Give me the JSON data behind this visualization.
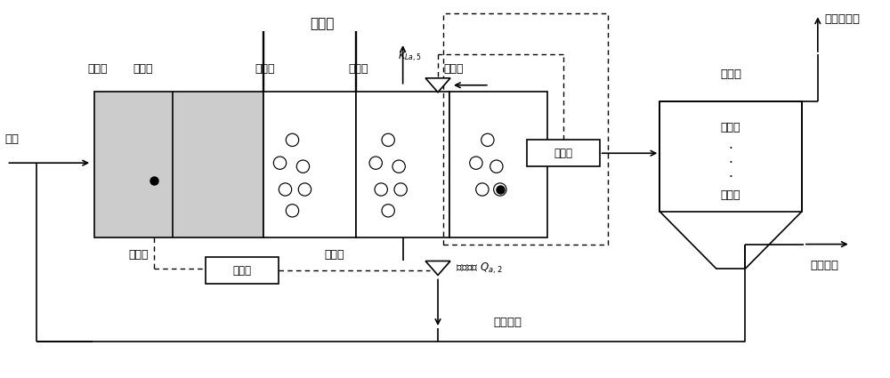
{
  "bg_color": "#ffffff",
  "line_color": "#000000",
  "gray_fill": "#cccccc",
  "labels": {
    "sewage": "污水",
    "bio_pool": "生化池",
    "zone1": "分区一",
    "zone2": "分区二",
    "zone3": "分区三",
    "zone4": "分区四",
    "zone5": "分区五",
    "anoxic": "缺氧区",
    "aerobic": "好氧区",
    "controller1": "控制器",
    "controller2": "控制器",
    "kla5": "$K_{La,5}$",
    "internal_flow": "内回流量 $Q_{a,2}$",
    "external_flow": "外回流量",
    "secondary_settler": "二沉池",
    "layer10": "第十层",
    "layer1": "第一层",
    "effluent": "上清液排出",
    "sludge": "污泥排放"
  }
}
